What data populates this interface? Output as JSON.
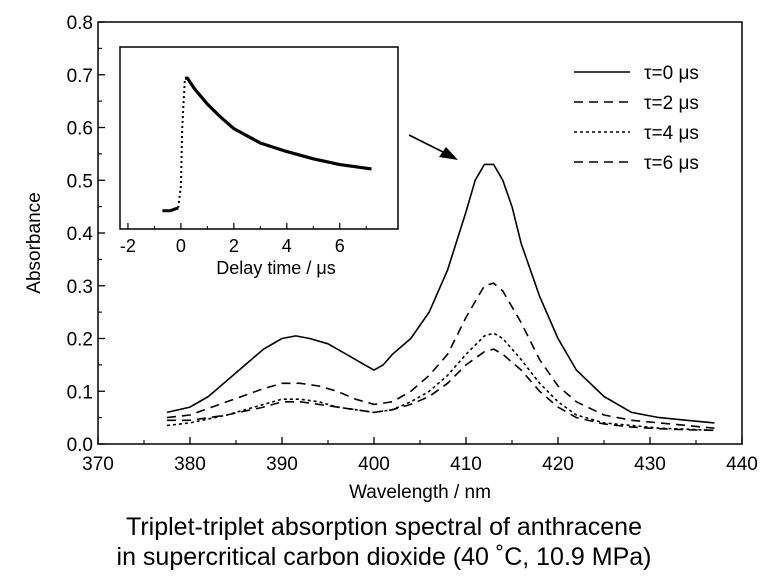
{
  "chart_data": [
    {
      "type": "line",
      "title": "",
      "xlabel": "Wavelength / nm",
      "ylabel": "Absorbance",
      "xlim": [
        370,
        440
      ],
      "ylim": [
        0.0,
        0.8
      ],
      "xticks": [
        "370",
        "380",
        "390",
        "400",
        "410",
        "420",
        "430",
        "440"
      ],
      "yticks": [
        "0.0",
        "0.1",
        "0.2",
        "0.3",
        "0.4",
        "0.5",
        "0.6",
        "0.7",
        "0.8"
      ],
      "grid": false,
      "legend_position": "top-right",
      "series": [
        {
          "name": "τ=0 μs",
          "style": "solid",
          "x": [
            377.5,
            380,
            382,
            384,
            386,
            388,
            390,
            391.5,
            393,
            395,
            397,
            399,
            400,
            401,
            402,
            404,
            406,
            408,
            410,
            411,
            412,
            413,
            414,
            415,
            416,
            418,
            420,
            422,
            425,
            428,
            431,
            434,
            437
          ],
          "y": [
            0.06,
            0.07,
            0.09,
            0.12,
            0.15,
            0.18,
            0.2,
            0.205,
            0.2,
            0.19,
            0.17,
            0.15,
            0.14,
            0.15,
            0.17,
            0.2,
            0.25,
            0.33,
            0.44,
            0.5,
            0.53,
            0.53,
            0.5,
            0.45,
            0.38,
            0.28,
            0.2,
            0.14,
            0.09,
            0.06,
            0.05,
            0.045,
            0.04
          ]
        },
        {
          "name": "τ=2 μs",
          "style": "dashed",
          "x": [
            377.5,
            380,
            384,
            388,
            390,
            392,
            394,
            396,
            398,
            400,
            402,
            404,
            406,
            408,
            410,
            412,
            413,
            414,
            416,
            418,
            420,
            422,
            425,
            428,
            431,
            434,
            437
          ],
          "y": [
            0.05,
            0.055,
            0.08,
            0.105,
            0.115,
            0.115,
            0.11,
            0.1,
            0.085,
            0.075,
            0.08,
            0.1,
            0.13,
            0.17,
            0.24,
            0.3,
            0.305,
            0.29,
            0.23,
            0.16,
            0.11,
            0.08,
            0.055,
            0.045,
            0.04,
            0.035,
            0.03
          ]
        },
        {
          "name": "τ=4 μs",
          "style": "dotted",
          "x": [
            377.5,
            380,
            384,
            388,
            390,
            392,
            394,
            396,
            398,
            400,
            402,
            404,
            406,
            408,
            410,
            412,
            413,
            414,
            416,
            418,
            420,
            422,
            425,
            428,
            431,
            434,
            437
          ],
          "y": [
            0.035,
            0.04,
            0.055,
            0.075,
            0.085,
            0.085,
            0.08,
            0.07,
            0.065,
            0.06,
            0.065,
            0.08,
            0.1,
            0.13,
            0.17,
            0.205,
            0.21,
            0.2,
            0.16,
            0.115,
            0.08,
            0.055,
            0.04,
            0.035,
            0.03,
            0.028,
            0.026
          ]
        },
        {
          "name": "τ=6 μs",
          "style": "dashed",
          "x": [
            377.5,
            380,
            384,
            388,
            390,
            392,
            394,
            396,
            398,
            400,
            402,
            404,
            406,
            408,
            410,
            412,
            413,
            414,
            416,
            418,
            420,
            422,
            425,
            428,
            431,
            434,
            437
          ],
          "y": [
            0.045,
            0.045,
            0.055,
            0.07,
            0.08,
            0.08,
            0.075,
            0.07,
            0.065,
            0.06,
            0.065,
            0.075,
            0.09,
            0.115,
            0.15,
            0.175,
            0.18,
            0.17,
            0.14,
            0.1,
            0.07,
            0.05,
            0.038,
            0.032,
            0.029,
            0.027,
            0.026
          ]
        }
      ],
      "annotations": [
        {
          "type": "arrow",
          "points_to": {
            "x": 412.3,
            "y": 0.53
          }
        }
      ]
    },
    {
      "type": "line",
      "title": "",
      "xlabel": "Delay time / μs",
      "ylabel": "",
      "xlim": [
        -2.3,
        8.2
      ],
      "ylim": [
        0,
        1
      ],
      "xticks": [
        "-2",
        "0",
        "2",
        "4",
        "6"
      ],
      "xtick_values": [
        -2,
        0,
        2,
        4,
        6
      ],
      "grid": false,
      "series": [
        {
          "name": "decay",
          "style": "solid",
          "x": [
            -0.7,
            -0.4,
            -0.1,
            0.0,
            0.05,
            0.15,
            0.25,
            0.5,
            1.0,
            1.5,
            2.0,
            3.0,
            4.0,
            5.0,
            6.0,
            7.2
          ],
          "y": [
            0.03,
            0.03,
            0.05,
            0.2,
            0.6,
            0.95,
            0.95,
            0.88,
            0.77,
            0.68,
            0.6,
            0.5,
            0.44,
            0.39,
            0.35,
            0.32
          ]
        }
      ]
    }
  ],
  "caption": {
    "line1": "Triplet-triplet absorption spectral of anthracene",
    "line2": "in supercritical carbon dioxide (40 ˚C, 10.9 MPa)"
  }
}
